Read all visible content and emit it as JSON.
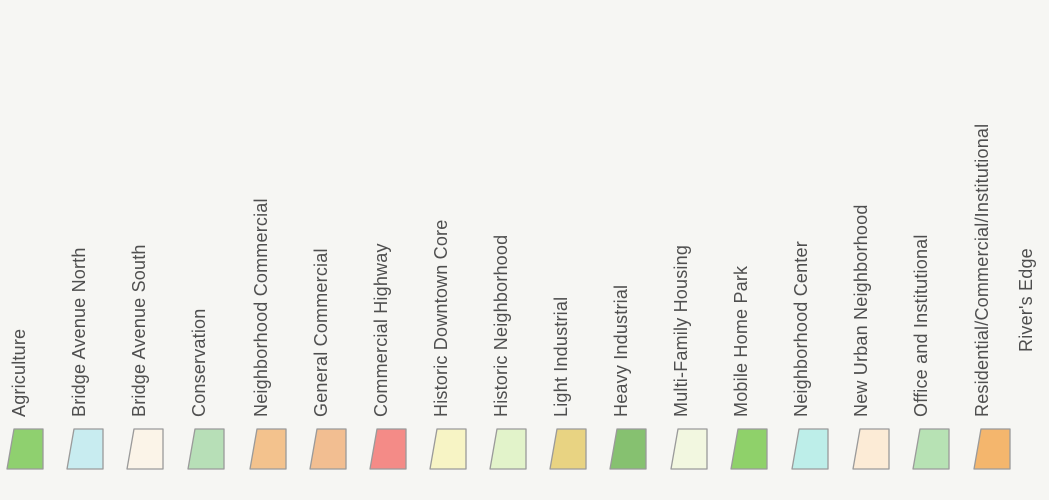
{
  "legend": {
    "items": [
      {
        "label": "Agriculture",
        "swatch_color": "#8fd06f"
      },
      {
        "label": "Bridge Avenue North",
        "swatch_color": "#c8ecf0"
      },
      {
        "label": "Bridge Avenue South",
        "swatch_color": "#fbf4e8"
      },
      {
        "label": "Conservation",
        "swatch_color": "#b7dfb7"
      },
      {
        "label": "Neighborhood Commercial",
        "swatch_color": "#f3c28d"
      },
      {
        "label": "General Commercial",
        "swatch_color": "#f2be91"
      },
      {
        "label": "Commercial Highway",
        "swatch_color": "#f48b87"
      },
      {
        "label": "Historic Downtown Core",
        "swatch_color": "#f7f4c5"
      },
      {
        "label": "Historic Neighborhood",
        "swatch_color": "#e2f3ca"
      },
      {
        "label": "Light Industrial",
        "swatch_color": "#e8d382"
      },
      {
        "label": "Heavy Industrial",
        "swatch_color": "#86c170"
      },
      {
        "label": "Multi-Family Housing",
        "swatch_color": "#f2f7e0"
      },
      {
        "label": "Mobile Home Park",
        "swatch_color": "#8fd16a"
      },
      {
        "label": "Neighborhood Center",
        "swatch_color": "#bdeee9"
      },
      {
        "label": "New Urban Neighborhood",
        "swatch_color": "#fcebd6"
      },
      {
        "label": "Office and Institutional",
        "swatch_color": "#b7e2b4"
      },
      {
        "label": "Residential/Commercial/Institutional",
        "swatch_color": "#f4b66d"
      },
      {
        "label": "River's Edge",
        "swatch_color": ""
      }
    ]
  }
}
